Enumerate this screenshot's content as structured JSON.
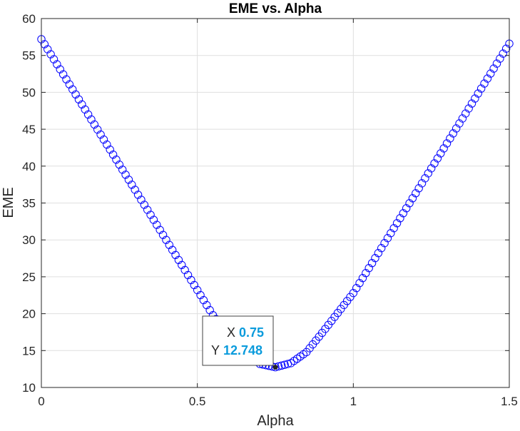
{
  "chart_data": {
    "type": "scatter",
    "title": "EME vs. Alpha",
    "xlabel": "Alpha",
    "ylabel": "EME",
    "xlim": [
      0,
      1.5
    ],
    "ylim": [
      10,
      60
    ],
    "xticks": [
      0,
      0.5,
      1,
      1.5
    ],
    "xtick_labels": [
      "0",
      "0.5",
      "1",
      "1.5"
    ],
    "yticks": [
      10,
      15,
      20,
      25,
      30,
      35,
      40,
      45,
      50,
      55,
      60
    ],
    "ytick_labels": [
      "10",
      "15",
      "20",
      "25",
      "30",
      "35",
      "40",
      "45",
      "50",
      "55",
      "60"
    ],
    "grid": true,
    "marker": "circle-open",
    "series": [
      {
        "color": "#0000ff",
        "x_start": 0,
        "x_end": 1.5,
        "x_step": 0.01,
        "curve_points": [
          [
            0,
            57.2
          ],
          [
            0.55,
            19.8
          ],
          [
            0.65,
            14.6
          ],
          [
            0.7,
            13.2
          ],
          [
            0.75,
            12.748
          ],
          [
            0.8,
            13.3
          ],
          [
            0.85,
            14.8
          ],
          [
            0.9,
            17.4
          ],
          [
            1.0,
            22.8
          ],
          [
            1.5,
            56.6
          ]
        ]
      }
    ],
    "datatip": {
      "x_key": "X",
      "x_value": "0.75",
      "y_key": "Y",
      "y_value": "12.748",
      "value_color": "#0a9bdc"
    }
  }
}
